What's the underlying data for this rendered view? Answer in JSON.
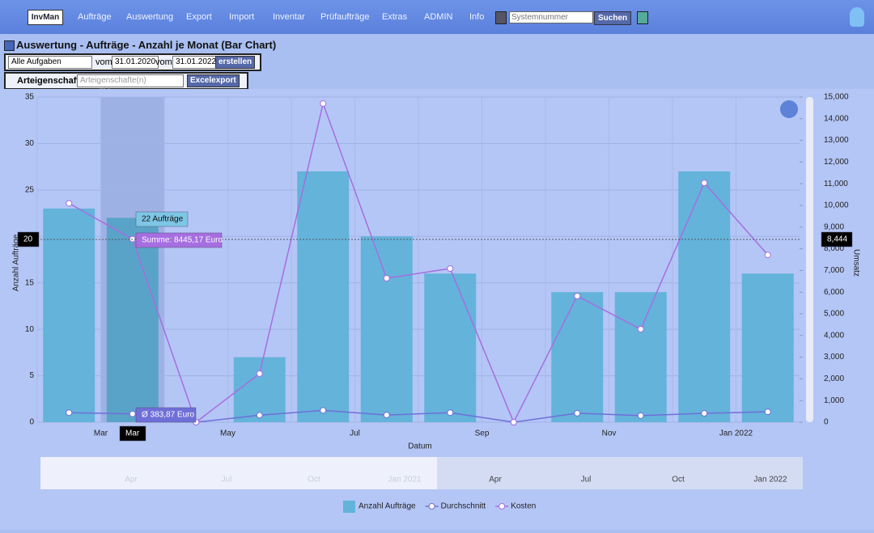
{
  "nav": {
    "logo": "InvMan",
    "items": [
      "Aufträge",
      "Auswertung",
      "Export",
      "Import",
      "Inventar",
      "Prüfaufträge",
      "Extras",
      "ADMIN",
      "Info"
    ],
    "search_placeholder": "Systemnummer",
    "search_button": "Suchen"
  },
  "header": {
    "title": "Auswertung - Aufträge - Anzahl je Monat (Bar Chart)"
  },
  "form": {
    "task_select": "Alle Aufgaben",
    "from_label": "vom",
    "from_date": "31.01.2020",
    "to_label": "vom",
    "to_date": "31.01.2022",
    "create_button": "erstellen",
    "properties_label": "Arteigenschaften",
    "properties_placeholder": "Arteigenschafte(n) auswählen",
    "export_button": "Excelexport"
  },
  "chart_data": {
    "type": "bar",
    "x_label": "Datum",
    "y_label": "Anzahl Aufträge",
    "y2_label": "Umsatz",
    "categories": [
      null,
      "Mar",
      null,
      "May",
      null,
      "Jul",
      null,
      "Sep",
      null,
      "Nov",
      null,
      "Jan 2022"
    ],
    "series": [
      {
        "name": "Anzahl Aufträge",
        "type": "bar",
        "color": "#63b3da",
        "values": [
          23,
          22,
          null,
          7,
          27,
          20,
          16,
          null,
          14,
          14,
          27,
          16
        ]
      },
      {
        "name": "Durchschnitt",
        "type": "line",
        "axis": "y2",
        "color": "#6f6fd8",
        "values": [
          440,
          383.87,
          0,
          320,
          545,
          330,
          440,
          0,
          415,
          305,
          410,
          480
        ]
      },
      {
        "name": "Kosten",
        "type": "line",
        "axis": "y2",
        "color": "#a66ee0",
        "values": [
          10100,
          8445.17,
          0,
          2240,
          14700,
          6640,
          7090,
          0,
          5820,
          4290,
          11040,
          7720
        ]
      }
    ],
    "ylim": [
      0,
      35
    ],
    "yticks": [
      0,
      5,
      10,
      15,
      20,
      25,
      30,
      35
    ],
    "y2lim": [
      0,
      15000
    ],
    "y2ticks": [
      0,
      {
        "value": 1000,
        "label": "1,000"
      },
      {
        "value": 2000,
        "label": "2,000"
      },
      {
        "value": 3000,
        "label": "3,000"
      },
      {
        "value": 4000,
        "label": "4,000"
      },
      {
        "value": 5000,
        "label": "5,000"
      },
      {
        "value": 6000,
        "label": "6,000"
      },
      {
        "value": 7000,
        "label": "7,000"
      },
      {
        "value": 8000,
        "label": "8,000"
      },
      {
        "value": 9000,
        "label": "9,000"
      },
      {
        "value": 10000,
        "label": "10,000"
      },
      {
        "value": 11000,
        "label": "11,000"
      },
      {
        "value": 12000,
        "label": "12,000"
      },
      {
        "value": 13000,
        "label": "13,000"
      },
      {
        "value": 14000,
        "label": "14,000"
      },
      {
        "value": 15000,
        "label": "15,000"
      }
    ],
    "grid": true,
    "tooltip": {
      "count": "22 Aufträge",
      "sum": "Summe: 8445,17 Euro",
      "avg": "Ø 383,87 Euro",
      "x": "Mar",
      "y_left": "20",
      "y_right": "8,444"
    },
    "navigator_labels": [
      "Apr",
      "Jul",
      "Oct",
      "Jan 2021",
      "Apr",
      "Jul",
      "Oct",
      "Jan 2022"
    ]
  }
}
